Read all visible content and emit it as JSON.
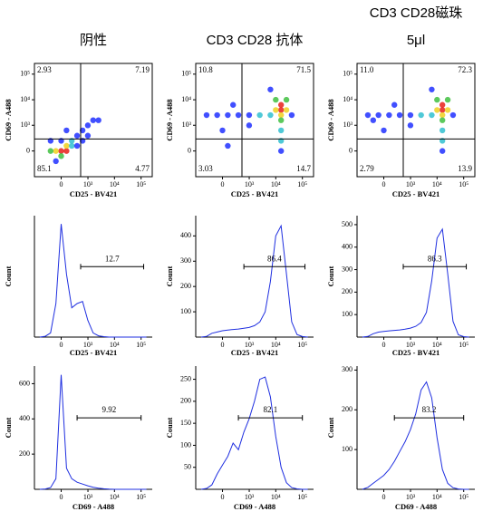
{
  "chart_data": [
    {
      "type": "scatter",
      "title": "阴性",
      "xlabel": "CD25 - BV421",
      "ylabel": "CD69 - A488",
      "xscale": "logicle",
      "yscale": "logicle",
      "xlim": [
        -1000,
        262144
      ],
      "ylim": [
        -1000,
        262144
      ],
      "xticks": [
        0,
        {
          "value": 1000,
          "label": "10³"
        },
        {
          "value": 10000,
          "label": "10⁴"
        },
        {
          "value": 100000,
          "label": "10⁵"
        }
      ],
      "yticks": [
        0,
        {
          "value": 1000,
          "label": "10³"
        },
        {
          "value": 10000,
          "label": "10⁴"
        },
        {
          "value": 100000,
          "label": "10⁵"
        }
      ],
      "x": [
        0,
        95,
        -95,
        95,
        0,
        -210,
        210,
        210,
        370,
        620,
        990,
        1580,
        2510,
        370,
        -95,
        620,
        -210,
        95,
        990,
        0
      ],
      "y": [
        0,
        0,
        0,
        95,
        -95,
        0,
        95,
        210,
        370,
        620,
        990,
        1580,
        1580,
        95,
        -210,
        210,
        210,
        620,
        370,
        210
      ],
      "colors": [
        "#e8201a",
        "#e8201a",
        "#f0d020",
        "#f0d020",
        "#40c040",
        "#40c040",
        "#30c0d0",
        "#30c0d0",
        "#2030ff",
        "#2030ff",
        "#2030ff",
        "#2030ff",
        "#2030ff",
        "#2030ff",
        "#2030ff",
        "#2030ff",
        "#2030ff",
        "#2030ff",
        "#2030ff",
        "#2030ff"
      ],
      "gate_x": 520,
      "gate_y": 260,
      "quadrants": {
        "values": [
          2.93,
          7.19,
          85.1,
          4.77
        ]
      }
    },
    {
      "type": "scatter",
      "title": "CD3 CD28 抗体",
      "xlabel": "CD25 - BV421",
      "ylabel": "CD69 - A488",
      "xscale": "logicle",
      "yscale": "logicle",
      "xlim": [
        -1000,
        262144
      ],
      "ylim": [
        -1000,
        262144
      ],
      "xticks": [
        0,
        {
          "value": 1000,
          "label": "10³"
        },
        {
          "value": 10000,
          "label": "10⁴"
        },
        {
          "value": 100000,
          "label": "10⁵"
        }
      ],
      "yticks": [
        0,
        {
          "value": 1000,
          "label": "10³"
        },
        {
          "value": 10000,
          "label": "10⁴"
        },
        {
          "value": 100000,
          "label": "10⁵"
        }
      ],
      "x": [
        15850,
        15850,
        10000,
        25120,
        15850,
        10000,
        25120,
        15850,
        6310,
        15850,
        15850,
        15850,
        2510,
        990,
        370,
        95,
        -95,
        -370,
        210,
        990,
        0,
        39810,
        6310,
        95
      ],
      "y": [
        3980,
        6310,
        3980,
        3980,
        2510,
        10000,
        10000,
        1580,
        2510,
        620,
        210,
        0,
        2510,
        2510,
        2510,
        2510,
        2510,
        2510,
        6310,
        990,
        620,
        2510,
        25120,
        95
      ],
      "colors": [
        "#e8201a",
        "#e8201a",
        "#f0d020",
        "#f0d020",
        "#f0d020",
        "#40c040",
        "#40c040",
        "#40c040",
        "#30c0d0",
        "#30c0d0",
        "#30c0d0",
        "#2030ff",
        "#30c0d0",
        "#2030ff",
        "#2030ff",
        "#2030ff",
        "#2030ff",
        "#2030ff",
        "#2030ff",
        "#2030ff",
        "#2030ff",
        "#2030ff",
        "#2030ff",
        "#2030ff"
      ],
      "gate_x": 520,
      "gate_y": 260,
      "quadrants": {
        "values": [
          10.8,
          71.5,
          3.03,
          14.7
        ]
      }
    },
    {
      "type": "scatter",
      "title": "CD3 CD28磁珠",
      "subtitle": "5μl",
      "xlabel": "CD25 - BV421",
      "ylabel": "CD69 - A488",
      "xscale": "logicle",
      "yscale": "logicle",
      "xlim": [
        -1000,
        262144
      ],
      "ylim": [
        -1000,
        262144
      ],
      "xticks": [
        0,
        {
          "value": 1000,
          "label": "10³"
        },
        {
          "value": 10000,
          "label": "10⁴"
        },
        {
          "value": 100000,
          "label": "10⁵"
        }
      ],
      "yticks": [
        0,
        {
          "value": 1000,
          "label": "10³"
        },
        {
          "value": 10000,
          "label": "10⁴"
        },
        {
          "value": 100000,
          "label": "10⁵"
        }
      ],
      "x": [
        15850,
        15850,
        10000,
        25120,
        15850,
        10000,
        25120,
        15850,
        6310,
        15850,
        15850,
        15850,
        2510,
        990,
        370,
        95,
        -95,
        -370,
        210,
        990,
        0,
        39810,
        6310,
        -210
      ],
      "y": [
        3980,
        6310,
        3980,
        3980,
        2510,
        10000,
        10000,
        1580,
        2510,
        620,
        210,
        0,
        2510,
        2510,
        2510,
        2510,
        2510,
        2510,
        6310,
        990,
        620,
        2510,
        25120,
        1580
      ],
      "colors": [
        "#e8201a",
        "#e8201a",
        "#f0d020",
        "#f0d020",
        "#f0d020",
        "#40c040",
        "#40c040",
        "#40c040",
        "#30c0d0",
        "#30c0d0",
        "#30c0d0",
        "#2030ff",
        "#30c0d0",
        "#2030ff",
        "#2030ff",
        "#2030ff",
        "#2030ff",
        "#2030ff",
        "#2030ff",
        "#2030ff",
        "#2030ff",
        "#2030ff",
        "#2030ff",
        "#2030ff"
      ],
      "gate_x": 520,
      "gate_y": 260,
      "quadrants": {
        "values": [
          11.0,
          72.3,
          2.79,
          13.9
        ],
        "value_labels": [
          "11.0",
          "72.3",
          "2.79",
          "13.9"
        ]
      }
    },
    {
      "type": "line",
      "xlabel": "CD25 - BV421",
      "ylabel": "Count",
      "xscale": "logicle",
      "color": "#1f2fe0",
      "xlim": [
        -1000,
        262144
      ],
      "ylim": [
        0,
        290
      ],
      "xticks": [
        0,
        {
          "value": 1000,
          "label": "10³"
        },
        {
          "value": 10000,
          "label": "10⁴"
        },
        {
          "value": 100000,
          "label": "10⁵"
        }
      ],
      "x": [
        -620,
        -370,
        -210,
        -95,
        0,
        95,
        210,
        370,
        620,
        990,
        1580,
        2510,
        3980,
        6310,
        10000,
        15850,
        25120,
        39810,
        63100,
        100000,
        158500
      ],
      "values": [
        0,
        2,
        10,
        80,
        270,
        150,
        70,
        80,
        85,
        40,
        10,
        3,
        1,
        0,
        0,
        0,
        0,
        0,
        0,
        0,
        0
      ],
      "gate": {
        "range": [
          520,
          125000
        ],
        "value": 12.7
      }
    },
    {
      "type": "line",
      "xlabel": "CD25 - BV421",
      "ylabel": "Count",
      "xscale": "logicle",
      "color": "#1f2fe0",
      "xlim": [
        -1000,
        262144
      ],
      "ylim": [
        0,
        480
      ],
      "yticks": [
        100,
        200,
        300,
        400
      ],
      "xticks": [
        0,
        {
          "value": 1000,
          "label": "10³"
        },
        {
          "value": 10000,
          "label": "10⁴"
        },
        {
          "value": 100000,
          "label": "10⁵"
        }
      ],
      "x": [
        -620,
        -370,
        -210,
        -95,
        0,
        95,
        210,
        370,
        620,
        990,
        1580,
        2510,
        3980,
        6310,
        10000,
        15850,
        25120,
        39810,
        63100,
        100000,
        158500
      ],
      "values": [
        0,
        3,
        15,
        20,
        25,
        28,
        30,
        32,
        35,
        38,
        45,
        60,
        100,
        220,
        400,
        440,
        250,
        60,
        10,
        2,
        0
      ],
      "gate": {
        "range": [
          620,
          125000
        ],
        "value": 86.4
      }
    },
    {
      "type": "line",
      "xlabel": "CD25 - BV421",
      "ylabel": "Count",
      "xscale": "logicle",
      "color": "#1f2fe0",
      "xlim": [
        -1000,
        262144
      ],
      "ylim": [
        0,
        540
      ],
      "yticks": [
        100,
        200,
        300,
        400,
        500
      ],
      "xticks": [
        0,
        {
          "value": 1000,
          "label": "10³"
        },
        {
          "value": 10000,
          "label": "10⁴"
        },
        {
          "value": 100000,
          "label": "10⁵"
        }
      ],
      "x": [
        -620,
        -370,
        -210,
        -95,
        0,
        95,
        210,
        370,
        620,
        990,
        1580,
        2510,
        3980,
        6310,
        10000,
        15850,
        25120,
        39810,
        63100,
        100000,
        158500
      ],
      "values": [
        0,
        3,
        15,
        22,
        25,
        28,
        30,
        32,
        35,
        40,
        48,
        65,
        110,
        250,
        440,
        480,
        280,
        70,
        10,
        2,
        0
      ],
      "gate": {
        "range": [
          520,
          125000
        ],
        "value": 86.3
      }
    },
    {
      "type": "line",
      "xlabel": "CD69 - A488",
      "ylabel": "Count",
      "xscale": "logicle",
      "color": "#1f2fe0",
      "xlim": [
        -1000,
        262144
      ],
      "ylim": [
        0,
        700
      ],
      "yticks": [
        200,
        400,
        600
      ],
      "xticks": [
        0,
        {
          "value": 1000,
          "label": "10³"
        },
        {
          "value": 10000,
          "label": "10⁴"
        },
        {
          "value": 100000,
          "label": "10⁵"
        }
      ],
      "x": [
        -620,
        -370,
        -210,
        -95,
        0,
        95,
        210,
        370,
        620,
        990,
        1580,
        2510,
        3980,
        6310,
        10000,
        15850,
        25120,
        39810,
        63100,
        100000,
        158500
      ],
      "values": [
        0,
        2,
        10,
        60,
        650,
        120,
        60,
        40,
        30,
        20,
        12,
        6,
        3,
        1,
        0,
        0,
        0,
        0,
        0,
        0,
        0
      ],
      "gate": {
        "range": [
          370,
          100000
        ],
        "value": 9.92
      }
    },
    {
      "type": "line",
      "xlabel": "CD69 - A488",
      "ylabel": "Count",
      "xscale": "logicle",
      "color": "#1f2fe0",
      "xlim": [
        -1000,
        262144
      ],
      "ylim": [
        0,
        280
      ],
      "yticks": [
        50,
        100,
        150,
        200,
        250
      ],
      "xticks": [
        0,
        {
          "value": 1000,
          "label": "10³"
        },
        {
          "value": 10000,
          "label": "10⁴"
        },
        {
          "value": 100000,
          "label": "10⁵"
        }
      ],
      "x": [
        -620,
        -370,
        -210,
        -95,
        0,
        95,
        210,
        370,
        620,
        990,
        1580,
        2510,
        3980,
        6310,
        10000,
        15850,
        25120,
        39810,
        63100,
        100000,
        158500
      ],
      "values": [
        0,
        2,
        10,
        35,
        55,
        75,
        105,
        90,
        130,
        160,
        200,
        250,
        255,
        210,
        120,
        50,
        15,
        4,
        1,
        0,
        0
      ],
      "gate": {
        "range": [
          370,
          100000
        ],
        "value": 82.1
      }
    },
    {
      "type": "line",
      "xlabel": "CD69 - A488",
      "ylabel": "Count",
      "xscale": "logicle",
      "color": "#1f2fe0",
      "xlim": [
        -1000,
        262144
      ],
      "ylim": [
        0,
        310
      ],
      "yticks": [
        100,
        200,
        300
      ],
      "xticks": [
        0,
        {
          "value": 1000,
          "label": "10³"
        },
        {
          "value": 10000,
          "label": "10⁴"
        },
        {
          "value": 100000,
          "label": "10⁵"
        }
      ],
      "x": [
        -620,
        -370,
        -210,
        -95,
        0,
        95,
        210,
        370,
        620,
        990,
        1580,
        2510,
        3980,
        6310,
        10000,
        15850,
        25120,
        39810,
        63100,
        100000,
        158500
      ],
      "values": [
        0,
        5,
        15,
        25,
        35,
        50,
        70,
        95,
        120,
        150,
        190,
        250,
        270,
        230,
        130,
        50,
        15,
        4,
        1,
        0,
        0
      ],
      "gate": {
        "range": [
          210,
          100000
        ],
        "value": 83.2
      }
    }
  ]
}
